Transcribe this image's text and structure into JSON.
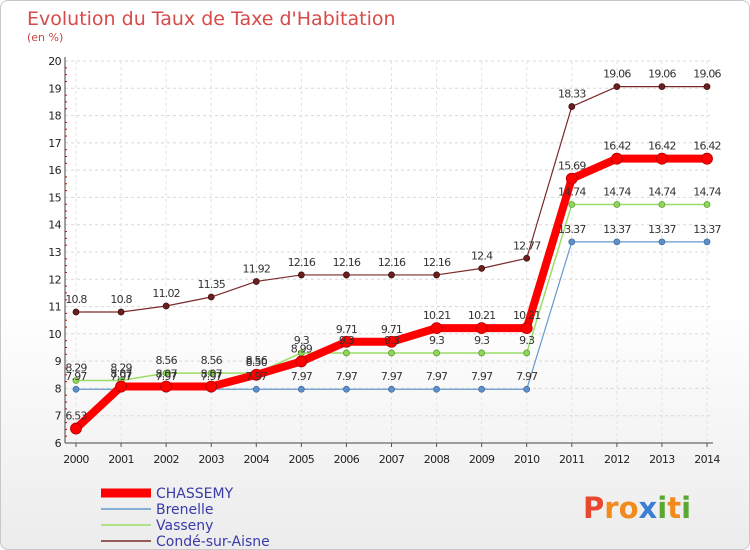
{
  "title": "Evolution du Taux de Taxe d'Habitation",
  "subtitle": "(en %)",
  "logo": "Proxiti",
  "colors": {
    "title": "#d64a4a",
    "tick_marks": "#cc0000",
    "logo": [
      "#e8462e",
      "#f28a1e",
      "#3a7fd5",
      "#5aa832"
    ]
  },
  "chart_data": {
    "type": "line",
    "title": "Evolution du Taux de Taxe d'Habitation",
    "ylabel": "(en %)",
    "xlabel": "",
    "x": [
      "2000",
      "2001",
      "2002",
      "2003",
      "2004",
      "2005",
      "2006",
      "2007",
      "2008",
      "2009",
      "2010",
      "2011",
      "2012",
      "2013",
      "2014"
    ],
    "ylim": [
      6,
      20
    ],
    "yticks": [
      "6",
      "7",
      "8",
      "9",
      "10",
      "11",
      "12",
      "13",
      "14",
      "15",
      "16",
      "17",
      "18",
      "19",
      "20"
    ],
    "grid": "horizontal",
    "legend_position": "bottom-left",
    "series": [
      {
        "name": "CHASSEMY",
        "color": "#ff0000",
        "values": [
          6.53,
          8.07,
          8.07,
          8.07,
          8.5,
          8.99,
          9.71,
          9.71,
          10.21,
          10.21,
          10.21,
          15.69,
          16.42,
          16.42,
          16.42
        ],
        "labels": [
          "6.53",
          "8.07",
          "8.07",
          "8.07",
          "8.50",
          "8.99",
          "9.71",
          "9.71",
          "10.21",
          "10.21",
          "10.21",
          "15.69",
          "16.42",
          "16.42",
          "16.42"
        ]
      },
      {
        "name": "Brenelle",
        "color": "#6699cc",
        "values": [
          7.97,
          7.97,
          7.97,
          7.97,
          7.97,
          7.97,
          7.97,
          7.97,
          7.97,
          7.97,
          7.97,
          13.37,
          13.37,
          13.37,
          13.37
        ],
        "labels": [
          "7.97",
          "7.97",
          "7.97",
          "7.97",
          "7.97",
          "7.97",
          "7.97",
          "7.97",
          "7.97",
          "7.97",
          "7.97",
          "13.37",
          "13.37",
          "13.37",
          "13.37"
        ]
      },
      {
        "name": "Vasseny",
        "color": "#99dd66",
        "values": [
          8.29,
          8.29,
          8.56,
          8.56,
          8.56,
          9.3,
          9.3,
          9.3,
          9.3,
          9.3,
          9.3,
          14.74,
          14.74,
          14.74,
          14.74
        ],
        "labels": [
          "8.29",
          "8.29",
          "8.56",
          "8.56",
          "8.56",
          "9.3",
          "9.3",
          "9.3",
          "9.3",
          "9.3",
          "9.3",
          "14.74",
          "14.74",
          "14.74",
          "14.74"
        ]
      },
      {
        "name": "Condé-sur-Aisne",
        "color": "#7a2a2a",
        "values": [
          10.8,
          10.8,
          11.02,
          11.35,
          11.92,
          12.16,
          12.16,
          12.16,
          12.16,
          12.4,
          12.77,
          18.33,
          19.06,
          19.06,
          19.06
        ],
        "labels": [
          "10.8",
          "10.8",
          "11.02",
          "11.35",
          "11.92",
          "12.16",
          "12.16",
          "12.16",
          "12.16",
          "12.4",
          "12.77",
          "18.33",
          "19.06",
          "19.06",
          "19.06"
        ]
      }
    ]
  }
}
